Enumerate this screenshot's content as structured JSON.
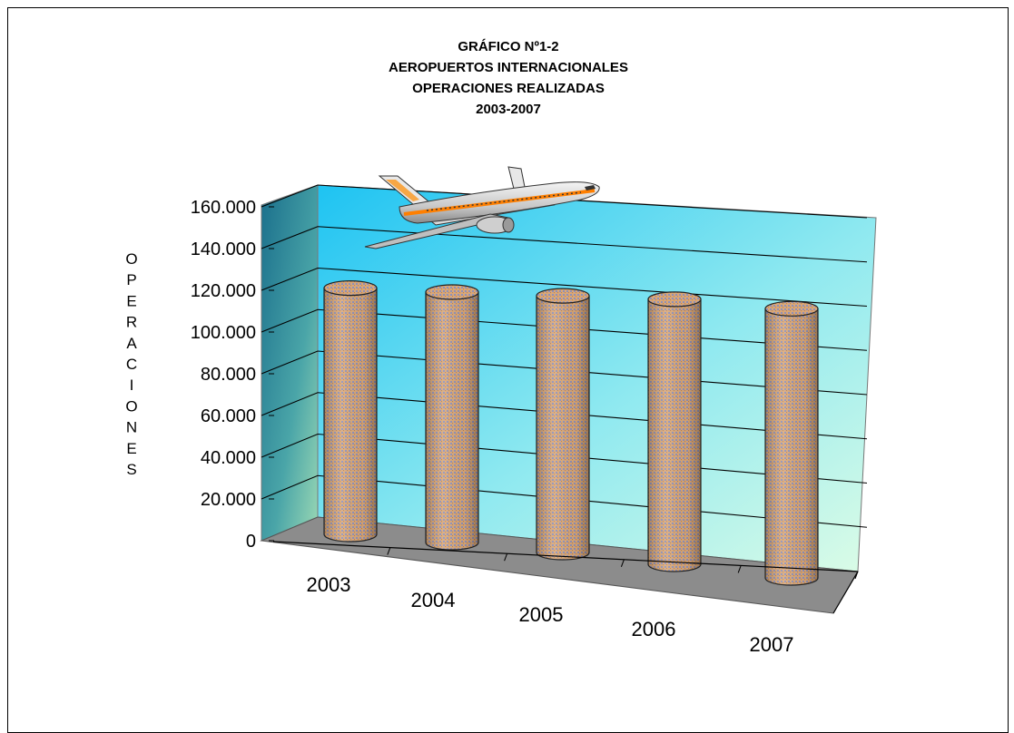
{
  "chart_data": {
    "type": "bar",
    "title_lines": [
      "GRÁFICO Nº1-2",
      "AEROPUERTOS INTERNACIONALES",
      "OPERACIONES REALIZADAS",
      "2003-2007"
    ],
    "categories": [
      "2003",
      "2004",
      "2005",
      "2006",
      "2007"
    ],
    "values": [
      118000,
      120000,
      123000,
      127000,
      129000
    ],
    "ylabel": "OPERACIONES",
    "yticks": [
      "0",
      "20.000",
      "40.000",
      "60.000",
      "80.000",
      "100.000",
      "120.000",
      "140.000",
      "160.000"
    ],
    "ylim": [
      0,
      160000
    ],
    "grid": true,
    "bar_shape": "cylinder",
    "decoration": "airplane-image",
    "colors": {
      "bar_fill": "#c9a07a",
      "bar_pattern": "#8a94b8",
      "wall_blue": "#2ec8f0",
      "wall_green": "#d8fbe0",
      "floor": "#8c8c8c"
    }
  }
}
